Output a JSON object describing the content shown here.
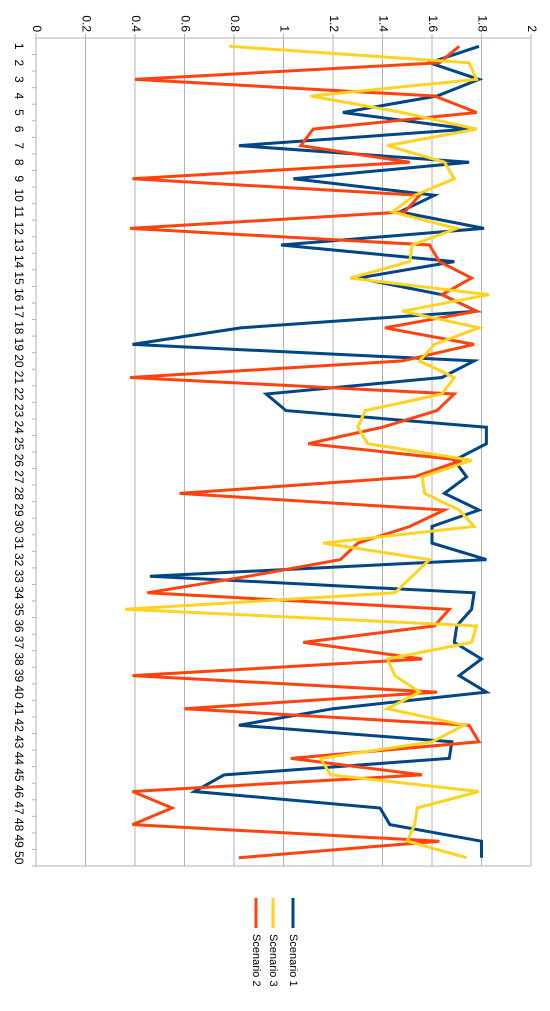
{
  "chart_data": {
    "type": "line",
    "orientation": "rotated 90 degrees clockwise (value axis runs left-to-right along the top, category axis runs top-to-bottom)",
    "value_axis": {
      "min": 0,
      "max": 2,
      "ticks": [
        "0",
        "0.2",
        "0.4",
        "0.6",
        "0.8",
        "1",
        "1.2",
        "1.4",
        "1.6",
        "1.8",
        "2"
      ]
    },
    "categories": [
      "1",
      "2",
      "3",
      "4",
      "5",
      "6",
      "7",
      "8",
      "9",
      "10",
      "11",
      "12",
      "13",
      "14",
      "15",
      "16",
      "17",
      "18",
      "19",
      "20",
      "21",
      "22",
      "23",
      "24",
      "25",
      "26",
      "27",
      "28",
      "29",
      "30",
      "31",
      "32",
      "33",
      "34",
      "35",
      "36",
      "37",
      "38",
      "39",
      "40",
      "41",
      "42",
      "43",
      "44",
      "45",
      "46",
      "47",
      "48",
      "49",
      "50"
    ],
    "grid": true,
    "legend_position": "bottom",
    "series": [
      {
        "name": "Scenario 1",
        "color": "#004586",
        "values": [
          1.79,
          1.59,
          1.79,
          1.62,
          1.24,
          1.75,
          0.82,
          1.75,
          1.04,
          1.61,
          1.47,
          1.81,
          0.99,
          1.69,
          1.3,
          1.64,
          1.78,
          0.83,
          0.39,
          1.77,
          1.64,
          0.93,
          1.01,
          1.82,
          1.82,
          1.69,
          1.74,
          1.65,
          1.79,
          1.6,
          1.6,
          1.82,
          0.46,
          1.77,
          1.76,
          1.7,
          1.69,
          1.8,
          1.71,
          1.82,
          1.2,
          0.82,
          1.68,
          1.67,
          0.76,
          0.64,
          1.39,
          1.43,
          1.8,
          1.8
        ]
      },
      {
        "name": "Scenario 2",
        "color": "#ff420e",
        "values": [
          1.71,
          1.63,
          0.4,
          1.61,
          1.78,
          1.12,
          1.07,
          1.51,
          0.39,
          1.55,
          1.49,
          0.38,
          1.59,
          1.63,
          1.76,
          1.64,
          1.78,
          1.41,
          1.77,
          1.48,
          0.38,
          1.69,
          1.62,
          1.4,
          1.1,
          1.72,
          1.53,
          0.58,
          1.65,
          1.51,
          1.3,
          1.23,
          0.86,
          0.45,
          1.67,
          1.61,
          1.08,
          1.56,
          0.39,
          1.62,
          0.6,
          1.75,
          1.79,
          1.03,
          1.56,
          0.39,
          0.55,
          0.39,
          1.63,
          0.82
        ]
      },
      {
        "name": "Scenario 3",
        "color": "#ffd320",
        "values": [
          0.78,
          1.75,
          1.78,
          1.11,
          1.48,
          1.78,
          1.42,
          1.65,
          1.69,
          1.53,
          1.44,
          1.7,
          1.52,
          1.51,
          1.27,
          1.83,
          1.48,
          1.79,
          1.61,
          1.55,
          1.69,
          1.64,
          1.33,
          1.3,
          1.34,
          1.76,
          1.56,
          1.57,
          1.71,
          1.77,
          1.16,
          1.59,
          1.52,
          1.45,
          0.36,
          1.78,
          1.76,
          1.42,
          1.45,
          1.55,
          1.42,
          1.73,
          1.6,
          1.15,
          1.19,
          1.79,
          1.54,
          1.53,
          1.5,
          1.74
        ]
      }
    ]
  }
}
